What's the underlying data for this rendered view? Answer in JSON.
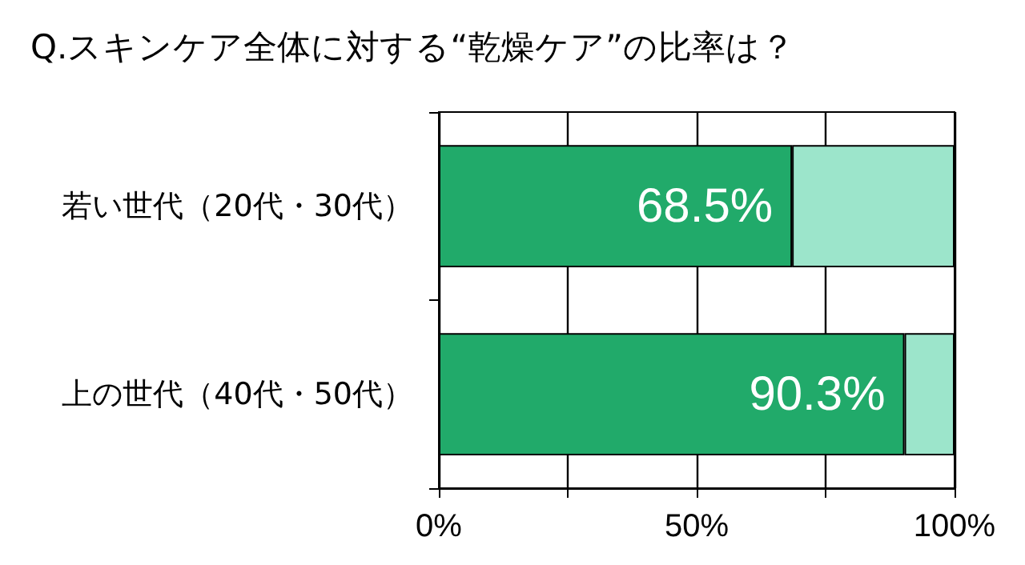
{
  "chart_data": {
    "type": "bar",
    "orientation": "horizontal",
    "stacked": true,
    "title": "Q.スキンケア全体に対する“乾燥ケア”の比率は？",
    "categories": [
      "若い世代（20代・30代）",
      "上の世代（40代・50代）"
    ],
    "series": [
      {
        "color": "#21aa6a",
        "values": [
          68.5,
          90.3
        ],
        "value_labels": [
          "68.5%",
          "90.3%"
        ]
      },
      {
        "color": "#9ce5cb",
        "values": [
          31.5,
          9.7
        ]
      }
    ],
    "xlim": [
      0,
      100
    ],
    "xticks": [
      {
        "value": 0,
        "label": "0%"
      },
      {
        "value": 25,
        "label": null
      },
      {
        "value": 50,
        "label": "50%"
      },
      {
        "value": 75,
        "label": null
      },
      {
        "value": 100,
        "label": "100%"
      }
    ],
    "grid": "x"
  }
}
